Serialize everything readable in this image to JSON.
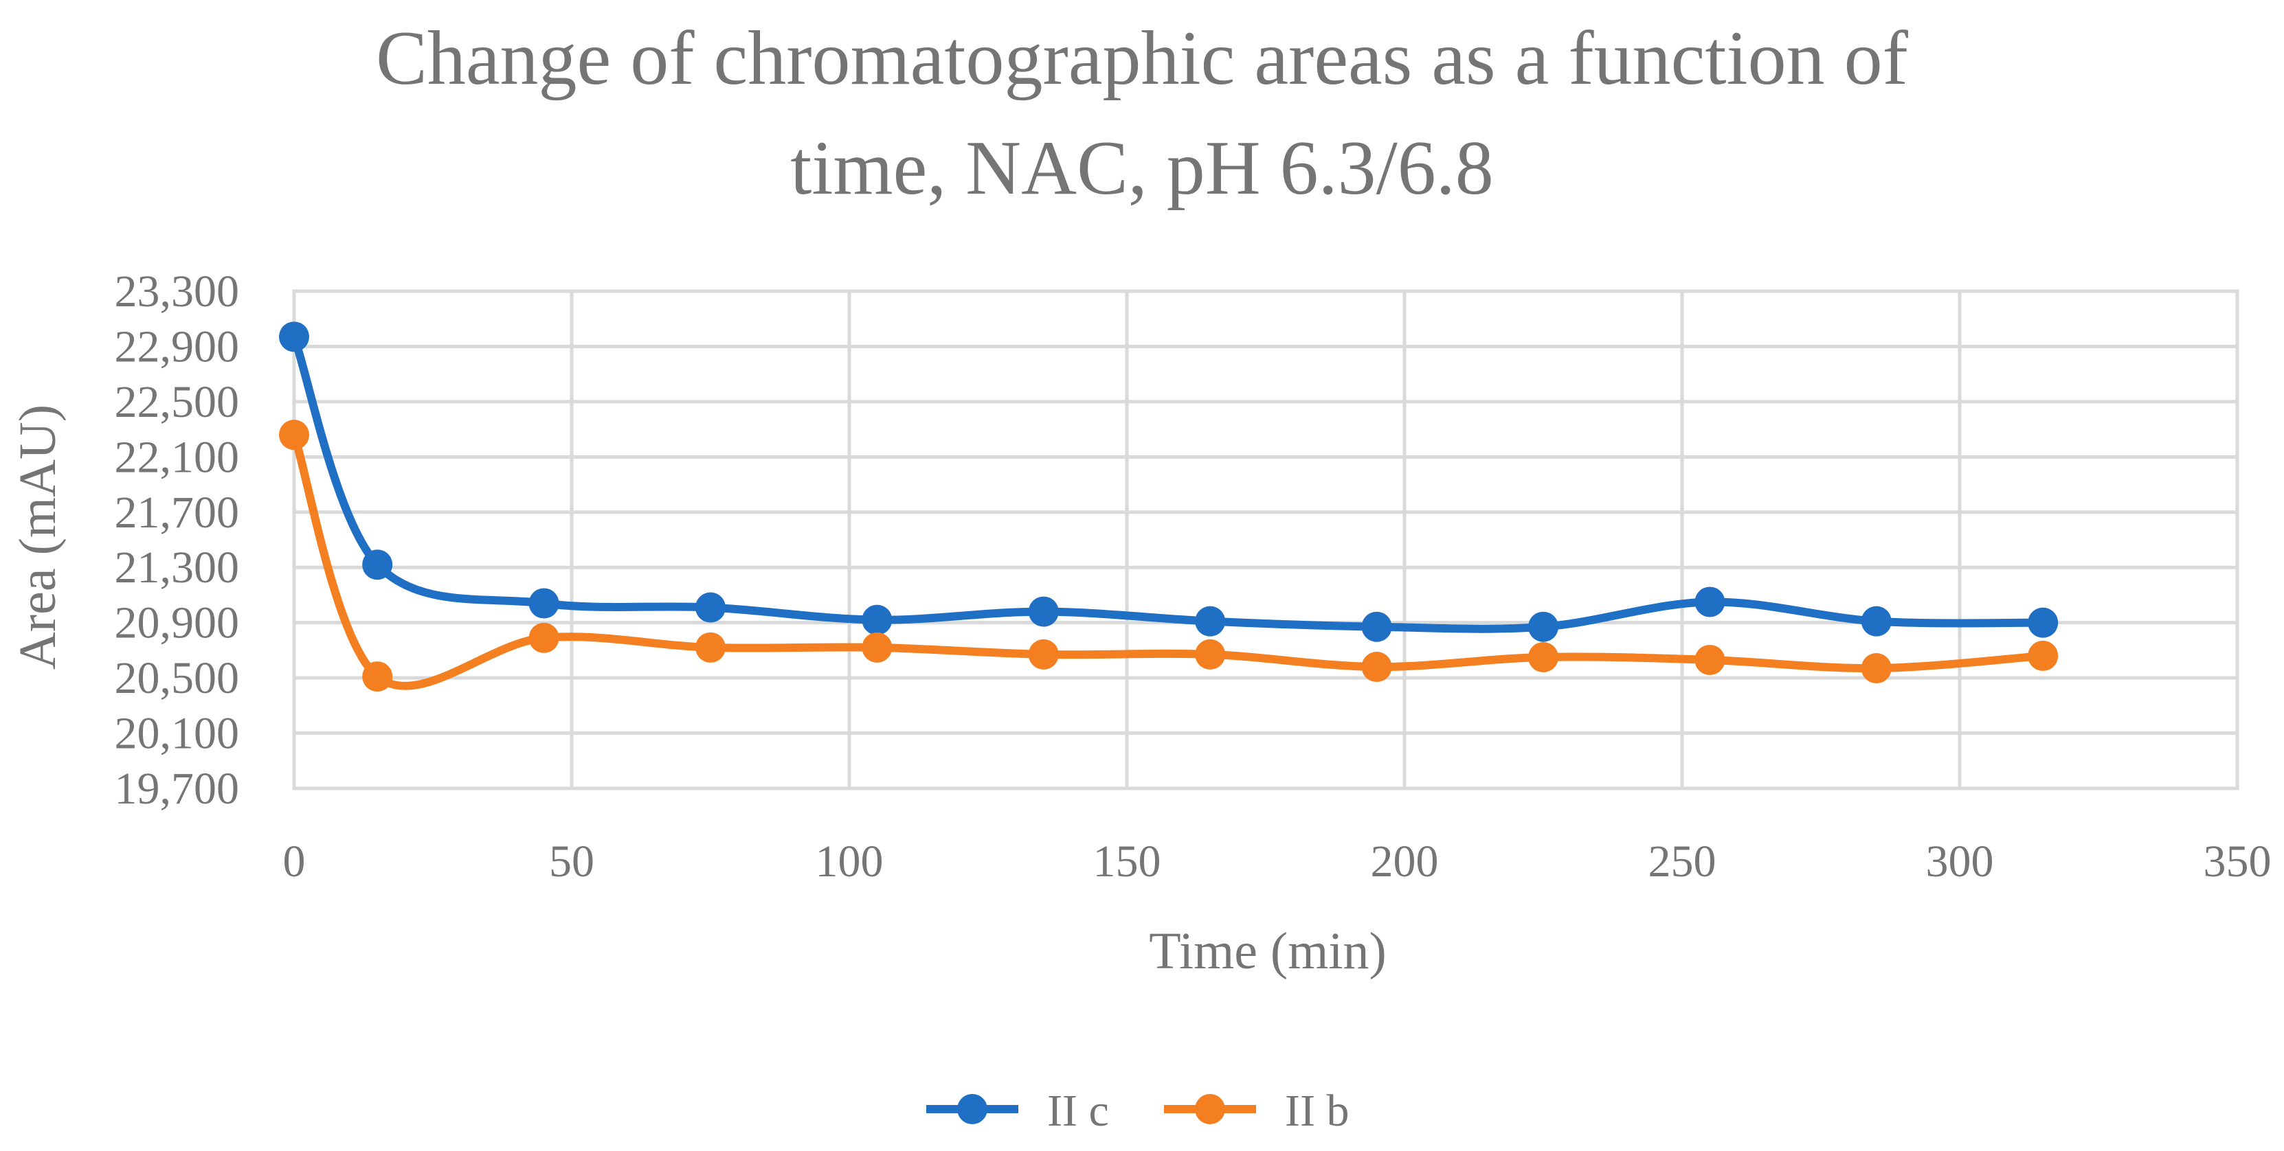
{
  "chart_data": {
    "type": "line",
    "title_lines": [
      "Change of chromatographic areas as a function of",
      "time, NAC, pH 6.3/6.8"
    ],
    "xlabel": "Time (min)",
    "ylabel": "Area (mAU)",
    "xlim": [
      0,
      350
    ],
    "ylim": [
      19700,
      23300
    ],
    "x_ticks": [
      0,
      50,
      100,
      150,
      200,
      250,
      300,
      350
    ],
    "x_tick_labels": [
      "0",
      "50",
      "100",
      "150",
      "200",
      "250",
      "300",
      "350"
    ],
    "y_ticks": [
      19700,
      20100,
      20500,
      20900,
      21300,
      21700,
      22100,
      22500,
      22900,
      23300
    ],
    "y_tick_labels": [
      "19,700",
      "20,100",
      "20,500",
      "20,900",
      "21,300",
      "21,700",
      "22,100",
      "22,500",
      "22,900",
      "23,300"
    ],
    "grid": true,
    "legend_position": "bottom",
    "series": [
      {
        "name": "II c",
        "color": "#1f6fc5",
        "x": [
          0,
          15,
          45,
          75,
          105,
          135,
          165,
          195,
          225,
          255,
          285,
          315
        ],
        "values": [
          22970,
          21320,
          21040,
          21010,
          20920,
          20980,
          20910,
          20870,
          20870,
          21050,
          20910,
          20900
        ]
      },
      {
        "name": "II b",
        "color": "#f47f20",
        "x": [
          0,
          15,
          45,
          75,
          105,
          135,
          165,
          195,
          225,
          255,
          285,
          315
        ],
        "values": [
          22260,
          20510,
          20790,
          20720,
          20720,
          20670,
          20670,
          20580,
          20650,
          20630,
          20570,
          20660
        ]
      }
    ]
  }
}
